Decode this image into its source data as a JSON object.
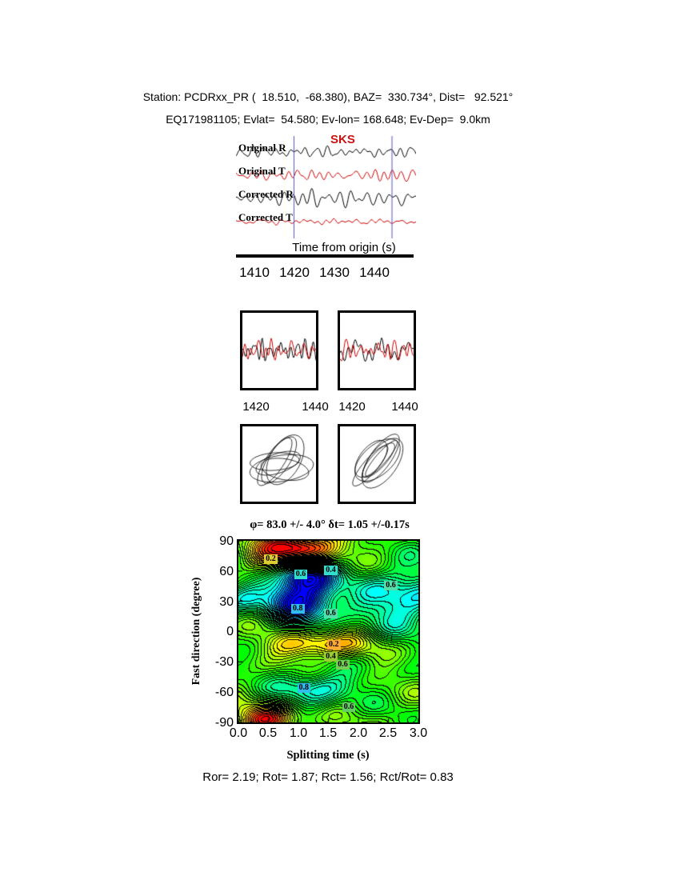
{
  "header": {
    "line1": "Station: PCDRxx_PR (  18.510,  -68.380), BAZ=  330.734°, Dist=   92.521°",
    "line2": "EQ171981105; Evlat=  54.580; Ev-lon= 168.648; Ev-Dep=  9.0km"
  },
  "trace_panel": {
    "phase_label": "SKS",
    "traces": [
      {
        "label": "Original R",
        "color": "#000000",
        "seed": 1,
        "amp": 9
      },
      {
        "label": "Original T",
        "color": "#cc0000",
        "seed": 2,
        "amp": 7
      },
      {
        "label": "Corrected R",
        "color": "#000000",
        "seed": 3,
        "amp": 9
      },
      {
        "label": "Corrected T",
        "color": "#cc0000",
        "seed": 4,
        "amp": 3.5
      }
    ],
    "time_range": [
      1405,
      1450
    ],
    "window": [
      1419.5,
      1444.0
    ],
    "window_color": "#5555cc",
    "axis_label": "Time from origin (s)",
    "ticks": [
      "1410",
      "1420",
      "1430",
      "1440"
    ]
  },
  "zoom_panels": {
    "left": {
      "ticks": [
        "1420",
        "1440"
      ],
      "colors": [
        "#000000",
        "#cc0000"
      ]
    },
    "right": {
      "ticks": [
        "1420",
        "1440"
      ],
      "colors": [
        "#000000",
        "#cc0000"
      ]
    }
  },
  "chart_data": {
    "type": "heatmap",
    "title": "φ= 83.0 +/- 4.0° δt= 1.05 +/-0.17s",
    "xlabel": "Splitting time (s)",
    "ylabel": "Fast direction (degree)",
    "xlim": [
      0,
      3
    ],
    "ylim": [
      -90,
      90
    ],
    "xticks": [
      "0.0",
      "0.5",
      "1.0",
      "1.5",
      "2.0",
      "2.5",
      "3.0"
    ],
    "yticks": [
      "90",
      "60",
      "30",
      "0",
      "-30",
      "-60",
      "-90"
    ],
    "best_fit": {
      "phi_deg": 83.0,
      "phi_err_deg": 4.0,
      "dt_s": 1.05,
      "dt_err_s": 0.17
    },
    "background_level": 0.55,
    "contour_step": 0.03,
    "field_blobs": [
      {
        "x": 1.05,
        "y": 33,
        "a": -0.62,
        "sx": 0.4,
        "sy": 16
      },
      {
        "x": 1.15,
        "y": 57,
        "a": -0.45,
        "sx": 0.3,
        "sy": 10
      },
      {
        "x": 1.0,
        "y": 84,
        "a": 0.5,
        "sx": 0.48,
        "sy": 11
      },
      {
        "x": 0.45,
        "y": -87,
        "a": 0.42,
        "sx": 0.35,
        "sy": 10
      },
      {
        "x": 1.3,
        "y": -13,
        "a": 0.3,
        "sx": 0.58,
        "sy": 10
      },
      {
        "x": 1.3,
        "y": -55,
        "a": -0.28,
        "sx": 0.45,
        "sy": 12
      },
      {
        "x": 2.75,
        "y": 33,
        "a": -0.33,
        "sx": 0.55,
        "sy": 22
      },
      {
        "x": 0.02,
        "y": 33,
        "a": -0.22,
        "sx": 0.28,
        "sy": 12
      },
      {
        "x": 0.45,
        "y": 68,
        "a": 0.16,
        "sx": 0.3,
        "sy": 9
      }
    ],
    "contour_labels": [
      {
        "text": "0.2",
        "x": 0.55,
        "y": 71,
        "bg": "#ddcc33"
      },
      {
        "text": "0.4",
        "x": 1.55,
        "y": 60,
        "bg": "#33ddcc"
      },
      {
        "text": "0.6",
        "x": 1.05,
        "y": 56,
        "bg": "#33ddcc"
      },
      {
        "text": "0.6",
        "x": 2.55,
        "y": 45,
        "bg": "#55ddaa"
      },
      {
        "text": "0.8",
        "x": 1.0,
        "y": 22,
        "bg": "#33bbee"
      },
      {
        "text": "0.6",
        "x": 1.55,
        "y": 17,
        "bg": "#55ddaa"
      },
      {
        "text": "0.2",
        "x": 1.6,
        "y": -14,
        "bg": "#ffaa33"
      },
      {
        "text": "0.4",
        "x": 1.55,
        "y": -26,
        "bg": "#99cc33"
      },
      {
        "text": "0.6",
        "x": 1.75,
        "y": -34,
        "bg": "#77cc55"
      },
      {
        "text": "0.8",
        "x": 1.1,
        "y": -57,
        "bg": "#33bbee"
      },
      {
        "text": "0.6",
        "x": 1.85,
        "y": -76,
        "bg": "#66cc66"
      }
    ]
  },
  "footer": {
    "text": "Ror= 2.19; Rot= 1.87; Rct= 1.56; Rct/Rot= 0.83"
  }
}
